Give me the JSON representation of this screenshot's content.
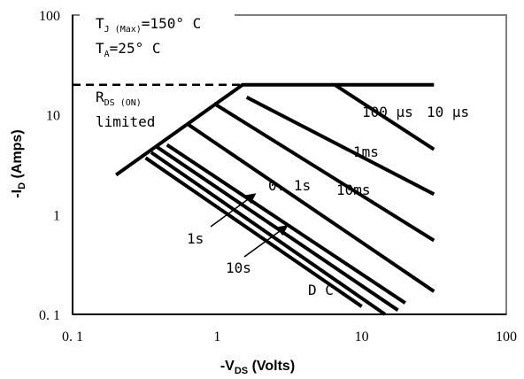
{
  "chart_data": {
    "type": "line",
    "title": "",
    "xlabel": {
      "prefix": "-V",
      "sub": "DS",
      "suffix": " (Volts)"
    },
    "ylabel": {
      "prefix": "-I",
      "sub": "D",
      "suffix": " (Amps)"
    },
    "xscale": "log",
    "yscale": "log",
    "xlim": [
      0.1,
      100
    ],
    "ylim": [
      0.1,
      100
    ],
    "xticks": [
      {
        "value": 0.1,
        "label": "0. 1"
      },
      {
        "value": 1,
        "label": "1"
      },
      {
        "value": 10,
        "label": "10"
      },
      {
        "value": 100,
        "label": "100"
      }
    ],
    "yticks": [
      {
        "value": 0.1,
        "label": "0. 1"
      },
      {
        "value": 1,
        "label": "1"
      },
      {
        "value": 10,
        "label": "10"
      },
      {
        "value": 100,
        "label": "100"
      }
    ],
    "grid": false,
    "conditions": {
      "tj": {
        "prefix": "T",
        "sub": "J (Max)",
        "suffix": "=150° C"
      },
      "ta": {
        "prefix": "T",
        "sub": "A",
        "suffix": "=25° C"
      }
    },
    "rds_label": {
      "prefix": "R",
      "sub": "DS (ON)",
      "line2": "limited"
    },
    "limit_line": {
      "y": 20,
      "x": [
        0.1,
        1.5
      ]
    },
    "envelope": {
      "x": [
        0.2,
        1.5,
        31.6
      ],
      "y": [
        2.5,
        20,
        20
      ]
    },
    "series": [
      {
        "name": "10 μs",
        "x": [
          6.5,
          31.6
        ],
        "y": [
          20,
          4.5
        ]
      },
      {
        "name": "100 μs",
        "x": [
          1.6,
          31.6
        ],
        "y": [
          15,
          1.6
        ]
      },
      {
        "name": "1ms",
        "x": [
          0.95,
          31.6
        ],
        "y": [
          13,
          0.55
        ]
      },
      {
        "name": "10ms",
        "x": [
          0.63,
          31.6
        ],
        "y": [
          8,
          0.17
        ]
      },
      {
        "name": "0. 1s",
        "x": [
          0.45,
          20
        ],
        "y": [
          5,
          0.13
        ]
      },
      {
        "name": "1s",
        "x": [
          0.38,
          17.8
        ],
        "y": [
          4.8,
          0.11
        ]
      },
      {
        "name": "10s",
        "x": [
          0.35,
          14.5
        ],
        "y": [
          4.2,
          0.1
        ]
      },
      {
        "name": "D C",
        "x": [
          0.32,
          10
        ],
        "y": [
          3.7,
          0.12
        ]
      }
    ],
    "curve_labels": {
      "us10": "10 μs",
      "us100": "100 μs",
      "ms1": "1ms",
      "ms10": "10ms",
      "s01": "0. 1s",
      "s1": "1s",
      "s10": "10s",
      "dc": "D C"
    }
  }
}
